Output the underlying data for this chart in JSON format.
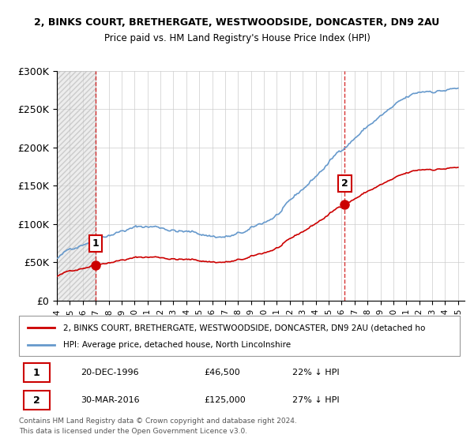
{
  "title1": "2, BINKS COURT, BRETHERGATE, WESTWOODSIDE, DONCASTER, DN9 2AU",
  "title2": "Price paid vs. HM Land Registry's House Price Index (HPI)",
  "ylabel_ticks": [
    "£0",
    "£50K",
    "£100K",
    "£150K",
    "£200K",
    "£250K",
    "£300K"
  ],
  "ylim": [
    0,
    300000
  ],
  "xlim_start": 1994.0,
  "xlim_end": 2025.5,
  "sale1_date": 1996.97,
  "sale1_price": 46500,
  "sale1_label": "1",
  "sale2_date": 2016.25,
  "sale2_price": 125000,
  "sale2_label": "2",
  "line_color_property": "#cc0000",
  "line_color_hpi": "#6699cc",
  "marker_color": "#cc0000",
  "annotation_bg": "#ffffff",
  "annotation_border": "#cc0000",
  "legend_label1": "2, BINKS COURT, BRETHERGATE, WESTWOODSIDE, DONCASTER, DN9 2AU (detached ho",
  "legend_label2": "HPI: Average price, detached house, North Lincolnshire",
  "footer1": "Contains HM Land Registry data © Crown copyright and database right 2024.",
  "footer2": "This data is licensed under the Open Government Licence v3.0.",
  "grid_color": "#cccccc",
  "background_color": "#ffffff"
}
